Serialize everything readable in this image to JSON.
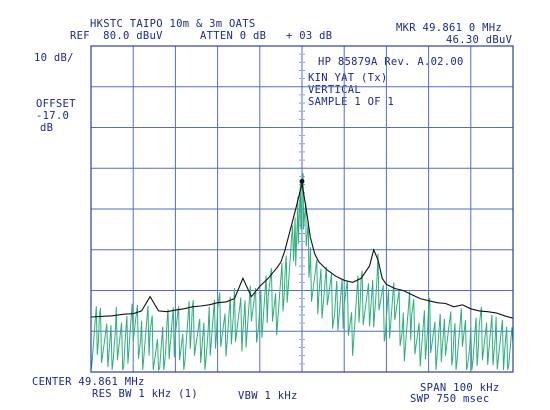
{
  "header": {
    "site": "HKSTC TAIPO 10m & 3m OATS",
    "ref": "REF  80.0 dBuV",
    "atten": "ATTEN 0 dB",
    "offset_corr": "+ 03 dB",
    "marker_freq": "MKR 49.861 0 MHz",
    "marker_level": "46.30 dBuV"
  },
  "left_panel": {
    "scale": "10 dB/",
    "offset_label": "OFFSET",
    "offset_value": "-17.0",
    "offset_unit": "dB"
  },
  "annotation": {
    "line1": "HP 85879A Rev. A.02.00",
    "line2": "KIN YAT (Tx)",
    "line3": "VERTICAL",
    "line4": "SAMPLE 1 OF 1"
  },
  "footer": {
    "center": "CENTER 49.861 MHz",
    "span": "SPAN 100 kHz",
    "rbw": "RES BW 1 kHz (1)",
    "vbw": "VBW 1 kHz",
    "swp": "SWP 750 msec"
  },
  "chart_data": {
    "type": "line",
    "x_unit": "kHz offset from center",
    "xlim": [
      -50,
      50
    ],
    "ylim": [
      0,
      80
    ],
    "y_unit": "dBuV",
    "grid": true,
    "x_divisions": 10,
    "y_divisions": 8,
    "peak_marker": {
      "x": 0,
      "y": 46.3
    },
    "series": [
      {
        "color": "#111111",
        "x": [
          -50,
          -45,
          -42,
          -40,
          -38,
          -36,
          -34,
          -32,
          -30,
          -28,
          -26,
          -24,
          -22,
          -20,
          -18,
          -16,
          -14,
          -12,
          -10,
          -8,
          -6,
          -5,
          -4,
          -3,
          -2,
          -1,
          0,
          1,
          2,
          3,
          4,
          5,
          6,
          8,
          10,
          12,
          14,
          16,
          17,
          18,
          19,
          20,
          22,
          24,
          26,
          28,
          30,
          32,
          34,
          36,
          38,
          40,
          42,
          44,
          46,
          48,
          50
        ],
        "y": [
          13.5,
          13.8,
          14.2,
          14.3,
          15.0,
          18.5,
          15.0,
          14.8,
          15.2,
          15.5,
          16.0,
          16.2,
          16.5,
          17.0,
          17.2,
          18.0,
          23.0,
          18.5,
          21.0,
          23.0,
          25.5,
          27.0,
          30.0,
          34.0,
          38.0,
          42.0,
          46.3,
          40.0,
          33.0,
          29.0,
          27.0,
          26.0,
          25.0,
          23.5,
          22.5,
          22.0,
          23.0,
          26.0,
          30.0,
          27.5,
          23.0,
          21.5,
          20.5,
          20.0,
          19.0,
          18.0,
          17.5,
          17.0,
          16.8,
          16.0,
          16.5,
          15.5,
          15.0,
          14.8,
          14.5,
          13.8,
          13.2
        ]
      },
      {
        "color": "#2fae7a",
        "x": [
          -50,
          -48,
          -46,
          -44,
          -42,
          -40,
          -38,
          -36,
          -34,
          -32,
          -30,
          -28,
          -26,
          -24,
          -22,
          -20,
          -18,
          -16,
          -14,
          -12,
          -10,
          -8,
          -6,
          -4,
          -2,
          -1,
          0,
          1,
          2,
          4,
          6,
          8,
          10,
          12,
          14,
          16,
          18,
          20,
          22,
          24,
          26,
          28,
          30,
          32,
          34,
          36,
          38,
          40,
          42,
          44,
          46,
          48,
          50
        ],
        "y": [
          6,
          11,
          4,
          9,
          5,
          12,
          7,
          10,
          3,
          8,
          11,
          6,
          13,
          5,
          9,
          14,
          8,
          15,
          10,
          18,
          12,
          20,
          16,
          22,
          30,
          36,
          44,
          35,
          25,
          19,
          22,
          15,
          18,
          11,
          20,
          14,
          22,
          12,
          17,
          9,
          14,
          7,
          12,
          5,
          11,
          6,
          9,
          4,
          10,
          6,
          8,
          5,
          7
        ]
      }
    ]
  }
}
